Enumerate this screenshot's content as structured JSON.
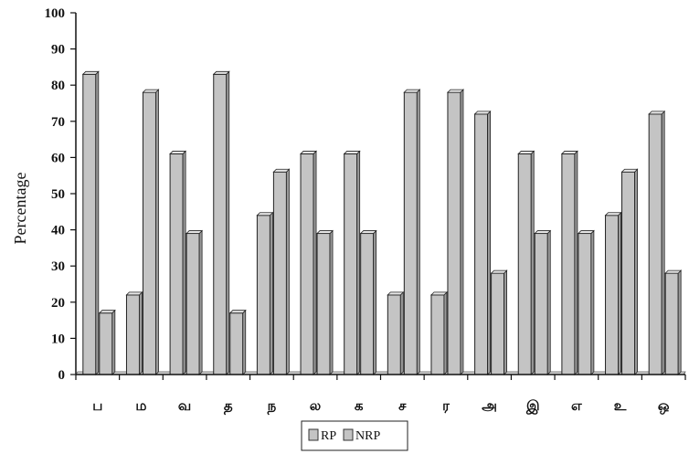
{
  "chart_data": {
    "type": "bar",
    "title": "",
    "xlabel": "",
    "ylabel": "Percentage",
    "ylim": [
      0,
      100
    ],
    "yticks": [
      0,
      10,
      20,
      30,
      40,
      50,
      60,
      70,
      80,
      90,
      100
    ],
    "categories": [
      "ப",
      "ம",
      "வ",
      "த",
      "ந",
      "ல",
      "க",
      "ச",
      "ர",
      "அ",
      "இ",
      "எ",
      "உ",
      "ஒ"
    ],
    "series": [
      {
        "name": "RP",
        "values": [
          83,
          22,
          61,
          83,
          44,
          61,
          61,
          22,
          22,
          72,
          61,
          61,
          44,
          72
        ]
      },
      {
        "name": "NRP",
        "values": [
          17,
          78,
          39,
          17,
          56,
          39,
          39,
          78,
          78,
          28,
          39,
          39,
          56,
          28
        ]
      }
    ],
    "legend_position": "bottom",
    "grid": false,
    "colors": {
      "bar_fill": "#c4c4c4",
      "bar_side": "#9a9a9a",
      "bar_top": "#e6e6e6",
      "axis": "#111111"
    }
  }
}
